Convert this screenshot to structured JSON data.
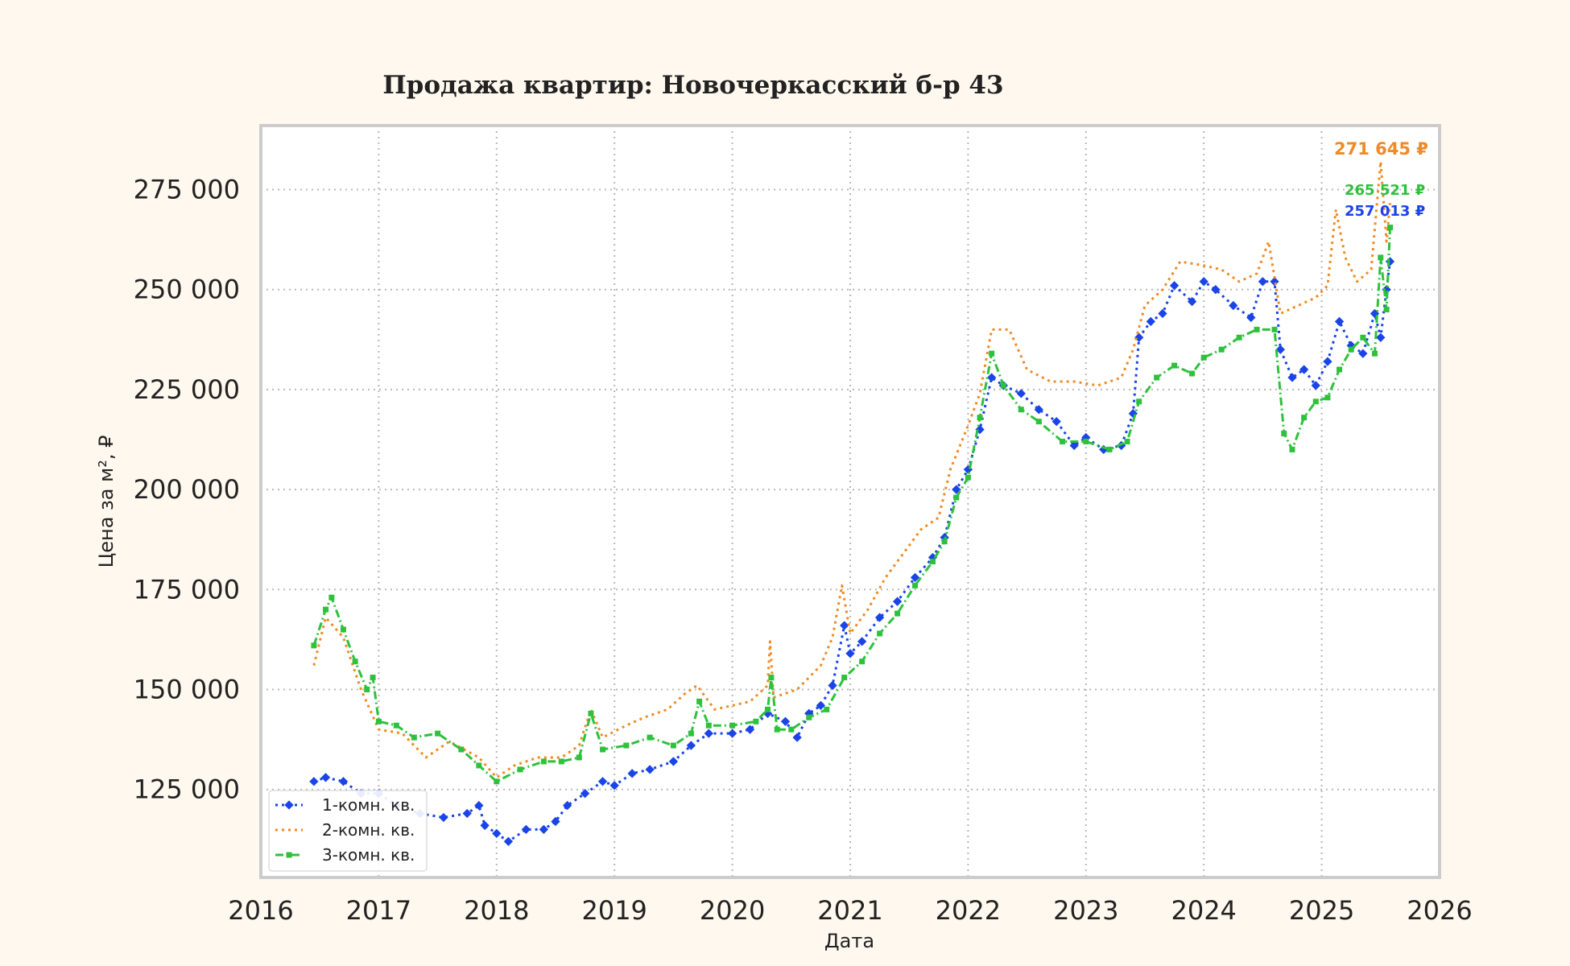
{
  "chart_data": {
    "type": "line",
    "title": "Продажа квартир: Новочеркасский б-р 43",
    "xlabel": "Дата",
    "ylabel": "Цена за м², ₽",
    "xlim": [
      2016.0,
      2026.0
    ],
    "ylim": [
      103000,
      291000
    ],
    "x_ticks": [
      2016,
      2017,
      2018,
      2019,
      2020,
      2021,
      2022,
      2023,
      2024,
      2025,
      2026
    ],
    "x_tick_labels": [
      "2016",
      "2017",
      "2018",
      "2019",
      "2020",
      "2021",
      "2022",
      "2023",
      "2024",
      "2025",
      "2026"
    ],
    "y_ticks": [
      125000,
      150000,
      175000,
      200000,
      225000,
      250000,
      275000
    ],
    "y_tick_labels": [
      "125 000",
      "150 000",
      "175 000",
      "200 000",
      "225 000",
      "250 000",
      "275 000"
    ],
    "grid": true,
    "legend_position": "bottom-left",
    "series": [
      {
        "name": "1-комн. кв.",
        "color": "#1a44e8",
        "style": "dotted",
        "marker": "diamond",
        "end_label": "257 013 ₽",
        "points": [
          [
            2016.45,
            127000
          ],
          [
            2016.55,
            128000
          ],
          [
            2016.7,
            127000
          ],
          [
            2016.85,
            124000
          ],
          [
            2017.0,
            124000
          ],
          [
            2017.15,
            121000
          ],
          [
            2017.35,
            119000
          ],
          [
            2017.55,
            118000
          ],
          [
            2017.75,
            119000
          ],
          [
            2017.85,
            121000
          ],
          [
            2017.9,
            116000
          ],
          [
            2018.0,
            114000
          ],
          [
            2018.1,
            112000
          ],
          [
            2018.25,
            115000
          ],
          [
            2018.4,
            115000
          ],
          [
            2018.5,
            117000
          ],
          [
            2018.6,
            121000
          ],
          [
            2018.75,
            124000
          ],
          [
            2018.9,
            127000
          ],
          [
            2019.0,
            126000
          ],
          [
            2019.15,
            129000
          ],
          [
            2019.3,
            130000
          ],
          [
            2019.5,
            132000
          ],
          [
            2019.65,
            136000
          ],
          [
            2019.8,
            139000
          ],
          [
            2020.0,
            139000
          ],
          [
            2020.15,
            140000
          ],
          [
            2020.3,
            144000
          ],
          [
            2020.45,
            142000
          ],
          [
            2020.55,
            138000
          ],
          [
            2020.65,
            144000
          ],
          [
            2020.75,
            146000
          ],
          [
            2020.85,
            151000
          ],
          [
            2020.95,
            166000
          ],
          [
            2021.0,
            159000
          ],
          [
            2021.1,
            162000
          ],
          [
            2021.25,
            168000
          ],
          [
            2021.4,
            172000
          ],
          [
            2021.55,
            178000
          ],
          [
            2021.7,
            183000
          ],
          [
            2021.8,
            188000
          ],
          [
            2021.9,
            200000
          ],
          [
            2022.0,
            205000
          ],
          [
            2022.1,
            215000
          ],
          [
            2022.2,
            228000
          ],
          [
            2022.3,
            226000
          ],
          [
            2022.45,
            224000
          ],
          [
            2022.6,
            220000
          ],
          [
            2022.75,
            217000
          ],
          [
            2022.9,
            211000
          ],
          [
            2023.0,
            213000
          ],
          [
            2023.15,
            210000
          ],
          [
            2023.3,
            211000
          ],
          [
            2023.4,
            219000
          ],
          [
            2023.45,
            238000
          ],
          [
            2023.55,
            242000
          ],
          [
            2023.65,
            244000
          ],
          [
            2023.75,
            251000
          ],
          [
            2023.9,
            247000
          ],
          [
            2024.0,
            252000
          ],
          [
            2024.1,
            250000
          ],
          [
            2024.25,
            246000
          ],
          [
            2024.4,
            243000
          ],
          [
            2024.5,
            252000
          ],
          [
            2024.6,
            252000
          ],
          [
            2024.65,
            235000
          ],
          [
            2024.75,
            228000
          ],
          [
            2024.85,
            230000
          ],
          [
            2024.95,
            226000
          ],
          [
            2025.05,
            232000
          ],
          [
            2025.15,
            242000
          ],
          [
            2025.25,
            236000
          ],
          [
            2025.35,
            234000
          ],
          [
            2025.45,
            244000
          ],
          [
            2025.5,
            238000
          ],
          [
            2025.55,
            250000
          ],
          [
            2025.58,
            257013
          ]
        ]
      },
      {
        "name": "2-комн. кв.",
        "color": "#f08a24",
        "style": "dotted",
        "marker": "none",
        "end_label": "271 645 ₽",
        "points": [
          [
            2016.45,
            156000
          ],
          [
            2016.55,
            168000
          ],
          [
            2016.7,
            163000
          ],
          [
            2016.85,
            150000
          ],
          [
            2017.0,
            140000
          ],
          [
            2017.2,
            139000
          ],
          [
            2017.4,
            133000
          ],
          [
            2017.6,
            137000
          ],
          [
            2017.85,
            133000
          ],
          [
            2018.0,
            128000
          ],
          [
            2018.15,
            131000
          ],
          [
            2018.35,
            133000
          ],
          [
            2018.55,
            133000
          ],
          [
            2018.7,
            136000
          ],
          [
            2018.8,
            145000
          ],
          [
            2018.9,
            138000
          ],
          [
            2019.1,
            141000
          ],
          [
            2019.25,
            143000
          ],
          [
            2019.45,
            145000
          ],
          [
            2019.6,
            149000
          ],
          [
            2019.7,
            151000
          ],
          [
            2019.85,
            145000
          ],
          [
            2020.0,
            146000
          ],
          [
            2020.15,
            147000
          ],
          [
            2020.3,
            151000
          ],
          [
            2020.32,
            162000
          ],
          [
            2020.35,
            148000
          ],
          [
            2020.55,
            150000
          ],
          [
            2020.75,
            156000
          ],
          [
            2020.85,
            163000
          ],
          [
            2020.93,
            176000
          ],
          [
            2021.0,
            164000
          ],
          [
            2021.15,
            170000
          ],
          [
            2021.3,
            178000
          ],
          [
            2021.45,
            184000
          ],
          [
            2021.6,
            190000
          ],
          [
            2021.75,
            193000
          ],
          [
            2021.85,
            205000
          ],
          [
            2022.0,
            216000
          ],
          [
            2022.1,
            224000
          ],
          [
            2022.2,
            240000
          ],
          [
            2022.35,
            240000
          ],
          [
            2022.5,
            230000
          ],
          [
            2022.7,
            227000
          ],
          [
            2022.9,
            227000
          ],
          [
            2023.1,
            226000
          ],
          [
            2023.3,
            228000
          ],
          [
            2023.4,
            235000
          ],
          [
            2023.5,
            246000
          ],
          [
            2023.65,
            250000
          ],
          [
            2023.8,
            257000
          ],
          [
            2024.0,
            256000
          ],
          [
            2024.15,
            255000
          ],
          [
            2024.3,
            252000
          ],
          [
            2024.45,
            254000
          ],
          [
            2024.55,
            262000
          ],
          [
            2024.65,
            244000
          ],
          [
            2024.8,
            246000
          ],
          [
            2024.95,
            248000
          ],
          [
            2025.05,
            251000
          ],
          [
            2025.12,
            270000
          ],
          [
            2025.2,
            258000
          ],
          [
            2025.3,
            252000
          ],
          [
            2025.42,
            255000
          ],
          [
            2025.5,
            282000
          ],
          [
            2025.55,
            262000
          ],
          [
            2025.58,
            271645
          ]
        ]
      },
      {
        "name": "3-комн. кв.",
        "color": "#2ec13c",
        "style": "dashdot",
        "marker": "square",
        "end_label": "265 521 ₽",
        "points": [
          [
            2016.45,
            161000
          ],
          [
            2016.55,
            170000
          ],
          [
            2016.6,
            173000
          ],
          [
            2016.7,
            165000
          ],
          [
            2016.8,
            157000
          ],
          [
            2016.9,
            150000
          ],
          [
            2016.95,
            153000
          ],
          [
            2017.0,
            142000
          ],
          [
            2017.15,
            141000
          ],
          [
            2017.3,
            138000
          ],
          [
            2017.5,
            139000
          ],
          [
            2017.7,
            135000
          ],
          [
            2017.85,
            131000
          ],
          [
            2018.0,
            127000
          ],
          [
            2018.2,
            130000
          ],
          [
            2018.4,
            132000
          ],
          [
            2018.55,
            132000
          ],
          [
            2018.7,
            133000
          ],
          [
            2018.8,
            144000
          ],
          [
            2018.9,
            135000
          ],
          [
            2019.1,
            136000
          ],
          [
            2019.3,
            138000
          ],
          [
            2019.5,
            136000
          ],
          [
            2019.65,
            139000
          ],
          [
            2019.72,
            147000
          ],
          [
            2019.8,
            141000
          ],
          [
            2020.0,
            141000
          ],
          [
            2020.2,
            142000
          ],
          [
            2020.3,
            145000
          ],
          [
            2020.33,
            153000
          ],
          [
            2020.38,
            140000
          ],
          [
            2020.5,
            140000
          ],
          [
            2020.65,
            143000
          ],
          [
            2020.8,
            145000
          ],
          [
            2020.95,
            153000
          ],
          [
            2021.1,
            157000
          ],
          [
            2021.25,
            164000
          ],
          [
            2021.4,
            169000
          ],
          [
            2021.55,
            176000
          ],
          [
            2021.7,
            182000
          ],
          [
            2021.8,
            187000
          ],
          [
            2021.9,
            198000
          ],
          [
            2022.0,
            203000
          ],
          [
            2022.1,
            218000
          ],
          [
            2022.2,
            234000
          ],
          [
            2022.3,
            226000
          ],
          [
            2022.45,
            220000
          ],
          [
            2022.6,
            217000
          ],
          [
            2022.8,
            212000
          ],
          [
            2023.0,
            212000
          ],
          [
            2023.2,
            210000
          ],
          [
            2023.35,
            212000
          ],
          [
            2023.45,
            222000
          ],
          [
            2023.6,
            228000
          ],
          [
            2023.75,
            231000
          ],
          [
            2023.9,
            229000
          ],
          [
            2024.0,
            233000
          ],
          [
            2024.15,
            235000
          ],
          [
            2024.3,
            238000
          ],
          [
            2024.45,
            240000
          ],
          [
            2024.6,
            240000
          ],
          [
            2024.68,
            214000
          ],
          [
            2024.75,
            210000
          ],
          [
            2024.85,
            218000
          ],
          [
            2024.95,
            222000
          ],
          [
            2025.05,
            223000
          ],
          [
            2025.15,
            230000
          ],
          [
            2025.25,
            235000
          ],
          [
            2025.35,
            238000
          ],
          [
            2025.45,
            234000
          ],
          [
            2025.5,
            258000
          ],
          [
            2025.55,
            245000
          ],
          [
            2025.58,
            265521
          ]
        ]
      }
    ]
  }
}
